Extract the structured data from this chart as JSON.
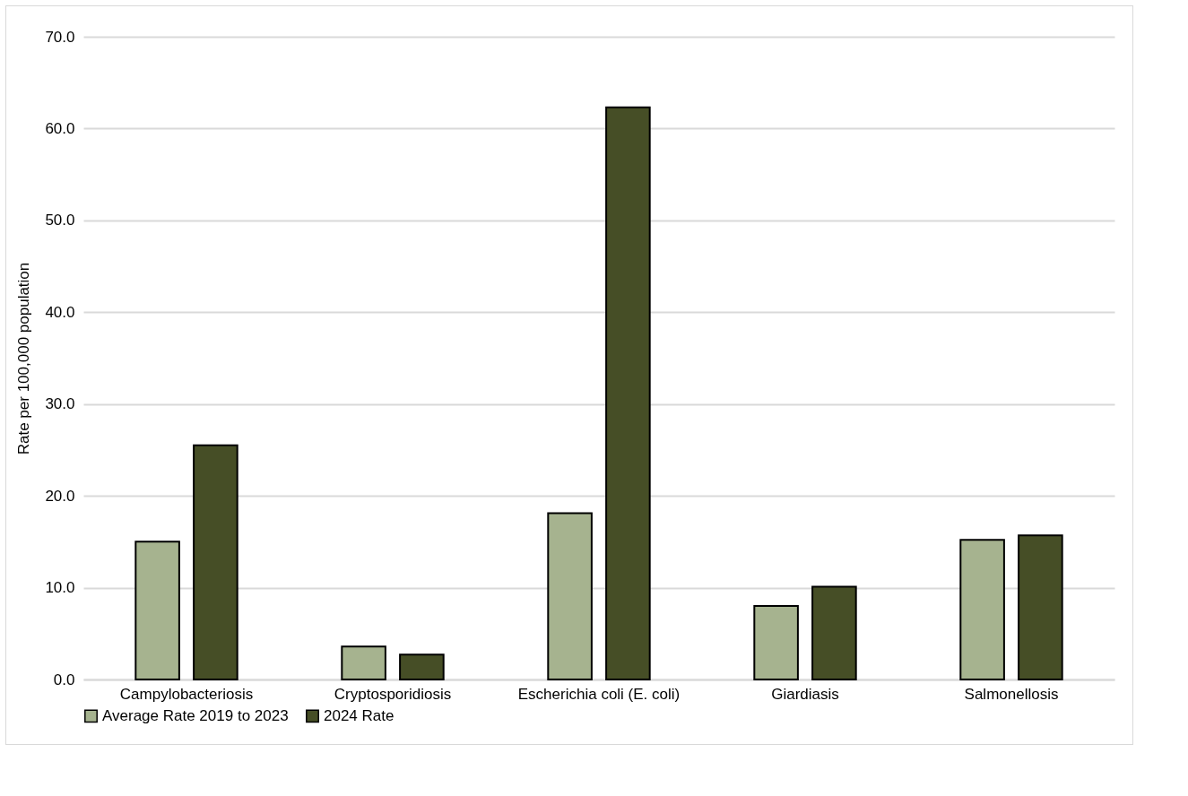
{
  "chart_data": {
    "type": "bar",
    "ylabel": "Rate per 100,000 population",
    "categories": [
      "Campylobacteriosis",
      "Cryptosporidiosis",
      "Escherichia coli (E. coli)",
      "Giardiasis",
      "Salmonellosis"
    ],
    "series": [
      {
        "name": "Average Rate 2019 to 2023",
        "color": "#a6b38f",
        "values": [
          15.0,
          3.6,
          18.1,
          8.0,
          15.2
        ]
      },
      {
        "name": "2024 Rate",
        "color": "#464e26",
        "values": [
          25.5,
          2.7,
          62.3,
          10.1,
          15.7
        ]
      }
    ],
    "ylim": [
      0,
      70
    ],
    "yticks": [
      {
        "value": 0,
        "label": "0.0"
      },
      {
        "value": 10,
        "label": "10.0"
      },
      {
        "value": 20,
        "label": "20.0"
      },
      {
        "value": 30,
        "label": "30.0"
      },
      {
        "value": 40,
        "label": "40.0"
      },
      {
        "value": 50,
        "label": "50.0"
      },
      {
        "value": 60,
        "label": "60.0"
      },
      {
        "value": 70,
        "label": "70.0"
      }
    ],
    "grid": "y",
    "legend": "bottom"
  }
}
